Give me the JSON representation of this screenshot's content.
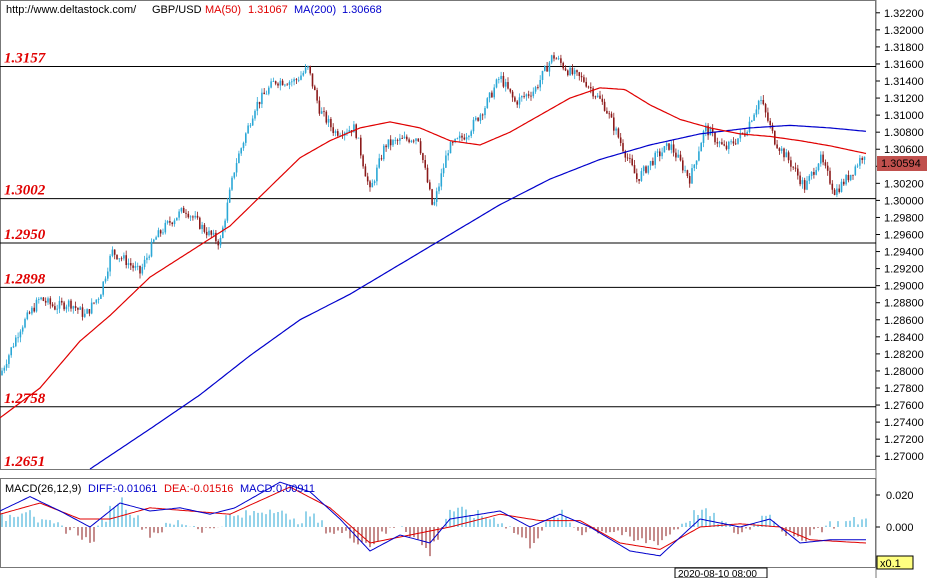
{
  "header": {
    "site": "http://www.deltastock.com/",
    "symbol": "GBP/USD",
    "ma50_label": "MA(50)",
    "ma50_value": "1.31067",
    "ma200_label": "MA(200)",
    "ma200_value": "1.30668"
  },
  "macd_header": {
    "label": "MACD(26,12,9)",
    "diff_label": "DIFF:",
    "diff_value": "-0.01061",
    "dea_label": "DEA:",
    "dea_value": "-0.01516",
    "macd_label": "MACD:",
    "macd_value": "0.00911"
  },
  "price_badge": "1.30594",
  "timestamp": "2020-08-10 08:00",
  "zoom_badge": "x0.1",
  "colors": {
    "ma50": "#e00000",
    "ma200": "#0000cc",
    "candle": "#2aa7d6",
    "bear": "#8b1a1a",
    "level_text": "#e00000",
    "badge": "#c0504d"
  },
  "chart_data": {
    "type": "candlestick",
    "symbol": "GBP/USD",
    "ylim": [
      1.2685,
      1.3235
    ],
    "yticks": [
      "1.32200",
      "1.32000",
      "1.31800",
      "1.31600",
      "1.31400",
      "1.31200",
      "1.31000",
      "1.30800",
      "1.30600",
      "1.30400",
      "1.30200",
      "1.30000",
      "1.29800",
      "1.29600",
      "1.29400",
      "1.29200",
      "1.29000",
      "1.28800",
      "1.28600",
      "1.28400",
      "1.28200",
      "1.28000",
      "1.27800",
      "1.27600",
      "1.27400",
      "1.27200",
      "1.27000"
    ],
    "levels": [
      {
        "label": "1.3157",
        "value": 1.3157
      },
      {
        "label": "1.3002",
        "value": 1.3002
      },
      {
        "label": "1.2950",
        "value": 1.295
      },
      {
        "label": "1.2898",
        "value": 1.2898
      },
      {
        "label": "1.2758",
        "value": 1.2758
      },
      {
        "label": "1.2651",
        "value": 1.2651
      }
    ],
    "close_keypoints": [
      [
        0,
        1.2795
      ],
      [
        20,
        1.285
      ],
      [
        40,
        1.2885
      ],
      [
        55,
        1.2875
      ],
      [
        70,
        1.288
      ],
      [
        85,
        1.2865
      ],
      [
        100,
        1.289
      ],
      [
        112,
        1.294
      ],
      [
        125,
        1.293
      ],
      [
        140,
        1.2915
      ],
      [
        155,
        1.2955
      ],
      [
        170,
        1.2975
      ],
      [
        185,
        1.299
      ],
      [
        205,
        1.2965
      ],
      [
        220,
        1.295
      ],
      [
        235,
        1.304
      ],
      [
        255,
        1.311
      ],
      [
        275,
        1.314
      ],
      [
        295,
        1.314
      ],
      [
        308,
        1.3155
      ],
      [
        320,
        1.3105
      ],
      [
        335,
        1.308
      ],
      [
        355,
        1.3085
      ],
      [
        370,
        1.301
      ],
      [
        385,
        1.3065
      ],
      [
        400,
        1.307
      ],
      [
        418,
        1.3075
      ],
      [
        433,
        1.299
      ],
      [
        448,
        1.306
      ],
      [
        468,
        1.308
      ],
      [
        485,
        1.311
      ],
      [
        500,
        1.3145
      ],
      [
        515,
        1.3115
      ],
      [
        535,
        1.313
      ],
      [
        553,
        1.317
      ],
      [
        570,
        1.315
      ],
      [
        585,
        1.314
      ],
      [
        605,
        1.311
      ],
      [
        620,
        1.307
      ],
      [
        637,
        1.3025
      ],
      [
        655,
        1.305
      ],
      [
        670,
        1.3065
      ],
      [
        690,
        1.3025
      ],
      [
        705,
        1.3085
      ],
      [
        725,
        1.306
      ],
      [
        745,
        1.308
      ],
      [
        760,
        1.312
      ],
      [
        775,
        1.307
      ],
      [
        790,
        1.3045
      ],
      [
        805,
        1.3015
      ],
      [
        820,
        1.305
      ],
      [
        835,
        1.301
      ],
      [
        850,
        1.303
      ],
      [
        866,
        1.3059
      ]
    ],
    "ma50_keypoints": [
      [
        0,
        1.2745
      ],
      [
        40,
        1.278
      ],
      [
        80,
        1.2835
      ],
      [
        110,
        1.2865
      ],
      [
        150,
        1.291
      ],
      [
        190,
        1.294
      ],
      [
        230,
        1.297
      ],
      [
        265,
        1.301
      ],
      [
        300,
        1.305
      ],
      [
        330,
        1.307
      ],
      [
        360,
        1.3085
      ],
      [
        390,
        1.3092
      ],
      [
        420,
        1.3085
      ],
      [
        450,
        1.307
      ],
      [
        480,
        1.3065
      ],
      [
        510,
        1.308
      ],
      [
        540,
        1.31
      ],
      [
        570,
        1.312
      ],
      [
        600,
        1.3132
      ],
      [
        625,
        1.313
      ],
      [
        650,
        1.3112
      ],
      [
        680,
        1.3095
      ],
      [
        710,
        1.3085
      ],
      [
        740,
        1.3078
      ],
      [
        770,
        1.3075
      ],
      [
        800,
        1.307
      ],
      [
        830,
        1.3064
      ],
      [
        866,
        1.3055
      ]
    ],
    "ma200_keypoints": [
      [
        90,
        1.2685
      ],
      [
        150,
        1.2732
      ],
      [
        200,
        1.2772
      ],
      [
        250,
        1.2818
      ],
      [
        300,
        1.286
      ],
      [
        350,
        1.289
      ],
      [
        400,
        1.2925
      ],
      [
        450,
        1.296
      ],
      [
        500,
        1.2995
      ],
      [
        550,
        1.3025
      ],
      [
        600,
        1.3048
      ],
      [
        650,
        1.3065
      ],
      [
        700,
        1.3078
      ],
      [
        750,
        1.3085
      ],
      [
        790,
        1.3088
      ],
      [
        830,
        1.3085
      ],
      [
        866,
        1.3081
      ]
    ],
    "macd": {
      "ylim": [
        -0.025,
        0.03
      ],
      "yticks": [
        "0.020",
        "0.000"
      ],
      "diff_keypoints": [
        [
          0,
          0.01
        ],
        [
          30,
          0.019
        ],
        [
          60,
          0.01
        ],
        [
          90,
          0.0
        ],
        [
          120,
          0.015
        ],
        [
          150,
          0.01
        ],
        [
          180,
          0.012
        ],
        [
          210,
          0.008
        ],
        [
          235,
          0.012
        ],
        [
          280,
          0.028
        ],
        [
          310,
          0.022
        ],
        [
          340,
          0.005
        ],
        [
          370,
          -0.015
        ],
        [
          400,
          -0.005
        ],
        [
          430,
          -0.01
        ],
        [
          450,
          0.005
        ],
        [
          500,
          0.01
        ],
        [
          530,
          0.0
        ],
        [
          560,
          0.008
        ],
        [
          590,
          0.0
        ],
        [
          630,
          -0.015
        ],
        [
          660,
          -0.018
        ],
        [
          700,
          0.005
        ],
        [
          740,
          0.0
        ],
        [
          770,
          0.005
        ],
        [
          800,
          -0.01
        ],
        [
          830,
          -0.008
        ],
        [
          866,
          -0.008
        ]
      ],
      "dea_keypoints": [
        [
          0,
          0.008
        ],
        [
          40,
          0.015
        ],
        [
          80,
          0.005
        ],
        [
          110,
          0.005
        ],
        [
          150,
          0.012
        ],
        [
          190,
          0.01
        ],
        [
          230,
          0.008
        ],
        [
          290,
          0.025
        ],
        [
          330,
          0.012
        ],
        [
          370,
          -0.01
        ],
        [
          410,
          -0.005
        ],
        [
          450,
          0.0
        ],
        [
          500,
          0.008
        ],
        [
          540,
          0.004
        ],
        [
          580,
          0.004
        ],
        [
          620,
          -0.01
        ],
        [
          660,
          -0.014
        ],
        [
          700,
          0.0
        ],
        [
          740,
          0.002
        ],
        [
          780,
          0.0
        ],
        [
          810,
          -0.008
        ],
        [
          866,
          -0.01
        ]
      ]
    }
  }
}
